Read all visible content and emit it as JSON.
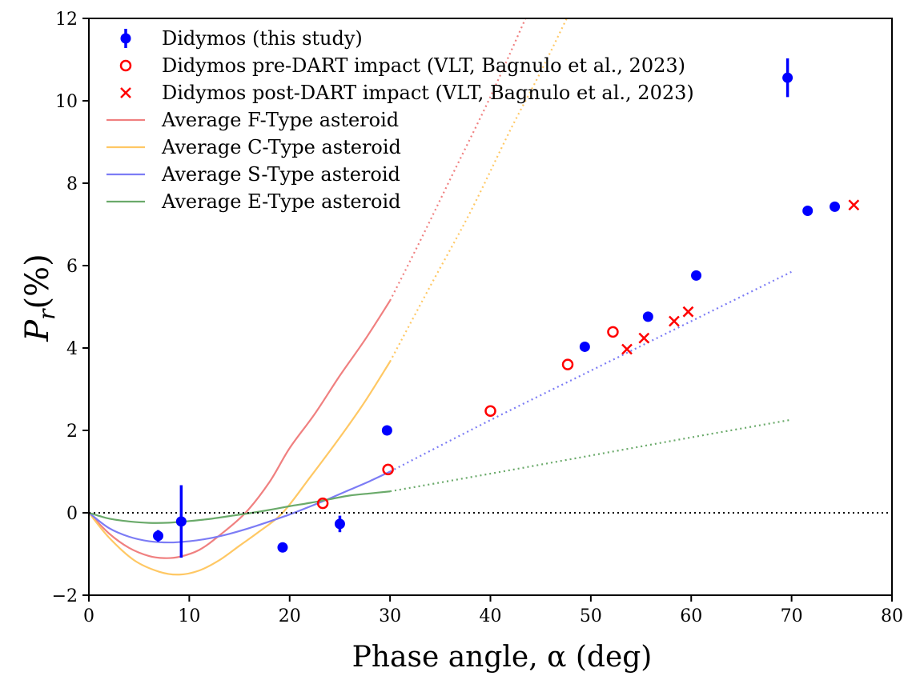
{
  "chart_data": {
    "type": "scatter",
    "title": "",
    "xlabel": "Phase angle, α (deg)",
    "ylabel_main": "P",
    "ylabel_sub": "r",
    "ylabel_unit": "(%)",
    "xlim": [
      0,
      80
    ],
    "ylim": [
      -2,
      12
    ],
    "xticks": [
      0,
      10,
      20,
      30,
      40,
      50,
      60,
      70,
      80
    ],
    "yticks": [
      -2,
      0,
      2,
      4,
      6,
      8,
      10,
      12
    ],
    "xtick_labels": [
      "0",
      "10",
      "20",
      "30",
      "40",
      "50",
      "60",
      "70",
      "80"
    ],
    "ytick_labels": [
      "−2",
      "0",
      "2",
      "4",
      "6",
      "8",
      "10",
      "12"
    ],
    "grid": false,
    "zero_line": true,
    "legend_position": "top-left",
    "colors": {
      "blue": "#0000ff",
      "red": "#ff0000",
      "f_type": "#f08080",
      "c_type": "#ffc864",
      "s_type": "#7c7cf5",
      "e_type": "#6aaa6a"
    },
    "series": [
      {
        "name": "Didymos (this study)",
        "kind": "errorbar",
        "color_key": "blue",
        "points": [
          {
            "x": 6.9,
            "y": -0.56,
            "err": 0.14
          },
          {
            "x": 9.2,
            "y": -0.21,
            "err": 0.88
          },
          {
            "x": 19.3,
            "y": -0.84,
            "err": 0.05
          },
          {
            "x": 25.0,
            "y": -0.27,
            "err": 0.2
          },
          {
            "x": 29.7,
            "y": 2.0,
            "err": 0.05
          },
          {
            "x": 49.4,
            "y": 4.03,
            "err": 0.05
          },
          {
            "x": 55.7,
            "y": 4.76,
            "err": 0.05
          },
          {
            "x": 60.5,
            "y": 5.76,
            "err": 0.05
          },
          {
            "x": 69.6,
            "y": 10.56,
            "err": 0.47
          },
          {
            "x": 71.6,
            "y": 7.33,
            "err": 0.09
          },
          {
            "x": 74.3,
            "y": 7.43,
            "err": 0.05
          }
        ]
      },
      {
        "name": "Didymos pre-DART impact (VLT, Bagnulo et al., 2023)",
        "kind": "open-circle",
        "color_key": "red",
        "points": [
          {
            "x": 23.3,
            "y": 0.23
          },
          {
            "x": 29.8,
            "y": 1.05
          },
          {
            "x": 40.0,
            "y": 2.47
          },
          {
            "x": 47.7,
            "y": 3.6
          },
          {
            "x": 52.2,
            "y": 4.39
          }
        ]
      },
      {
        "name": "Didymos post-DART impact (VLT, Bagnulo et al., 2023)",
        "kind": "cross",
        "color_key": "red",
        "points": [
          {
            "x": 53.6,
            "y": 3.97
          },
          {
            "x": 55.3,
            "y": 4.24
          },
          {
            "x": 58.3,
            "y": 4.65
          },
          {
            "x": 59.7,
            "y": 4.88
          },
          {
            "x": 76.2,
            "y": 7.47
          }
        ]
      },
      {
        "name": "Average F-Type asteroid",
        "kind": "curve",
        "color_key": "f_type",
        "solid": [
          [
            0,
            0
          ],
          [
            2,
            -0.5
          ],
          [
            4,
            -0.85
          ],
          [
            6,
            -1.05
          ],
          [
            7.5,
            -1.1
          ],
          [
            9,
            -1.07
          ],
          [
            11,
            -0.9
          ],
          [
            13,
            -0.55
          ],
          [
            15.6,
            0
          ],
          [
            18,
            0.75
          ],
          [
            20,
            1.57
          ],
          [
            22.5,
            2.4
          ],
          [
            25,
            3.33
          ],
          [
            27.5,
            4.2
          ],
          [
            30,
            5.15
          ]
        ],
        "dotted": [
          [
            30,
            5.15
          ],
          [
            33,
            6.6
          ],
          [
            36,
            8.1
          ],
          [
            40,
            10.1
          ],
          [
            43.5,
            12.0
          ]
        ]
      },
      {
        "name": "Average C-Type asteroid",
        "kind": "curve",
        "color_key": "c_type",
        "solid": [
          [
            0,
            0
          ],
          [
            2,
            -0.6
          ],
          [
            4.5,
            -1.15
          ],
          [
            7,
            -1.43
          ],
          [
            9,
            -1.5
          ],
          [
            11,
            -1.4
          ],
          [
            13,
            -1.15
          ],
          [
            15,
            -0.8
          ],
          [
            17,
            -0.45
          ],
          [
            19.3,
            0
          ],
          [
            22,
            0.85
          ],
          [
            25,
            1.83
          ],
          [
            27.5,
            2.7
          ],
          [
            30,
            3.67
          ]
        ],
        "dotted": [
          [
            30,
            3.67
          ],
          [
            34,
            5.5
          ],
          [
            38,
            7.3
          ],
          [
            42,
            9.3
          ],
          [
            45,
            10.7
          ],
          [
            47.6,
            12.0
          ]
        ]
      },
      {
        "name": "Average S-Type asteroid",
        "kind": "curve",
        "color_key": "s_type",
        "solid": [
          [
            0,
            0
          ],
          [
            2,
            -0.37
          ],
          [
            4,
            -0.58
          ],
          [
            6,
            -0.69
          ],
          [
            8,
            -0.72
          ],
          [
            10,
            -0.69
          ],
          [
            12,
            -0.62
          ],
          [
            14,
            -0.51
          ],
          [
            16,
            -0.37
          ],
          [
            18,
            -0.21
          ],
          [
            20,
            -0.04
          ],
          [
            22,
            0.15
          ],
          [
            24,
            0.35
          ],
          [
            26,
            0.56
          ],
          [
            28,
            0.77
          ],
          [
            30,
            1.0
          ]
        ],
        "dotted": [
          [
            30,
            1.0
          ],
          [
            40,
            2.25
          ],
          [
            50,
            3.45
          ],
          [
            60,
            4.65
          ],
          [
            70,
            5.85
          ]
        ]
      },
      {
        "name": "Average E-Type asteroid",
        "kind": "curve",
        "color_key": "e_type",
        "solid": [
          [
            0,
            0
          ],
          [
            2,
            -0.14
          ],
          [
            4,
            -0.21
          ],
          [
            6,
            -0.245
          ],
          [
            8,
            -0.24
          ],
          [
            10,
            -0.2
          ],
          [
            12,
            -0.15
          ],
          [
            14,
            -0.08
          ],
          [
            16,
            -0.01
          ],
          [
            18,
            0.07
          ],
          [
            20,
            0.16
          ],
          [
            22,
            0.24
          ],
          [
            24,
            0.33
          ],
          [
            26,
            0.42
          ],
          [
            28,
            0.47
          ],
          [
            30,
            0.52
          ]
        ],
        "dotted": [
          [
            30,
            0.52
          ],
          [
            40,
            0.95
          ],
          [
            50,
            1.39
          ],
          [
            60,
            1.83
          ],
          [
            70,
            2.26
          ]
        ]
      }
    ]
  }
}
